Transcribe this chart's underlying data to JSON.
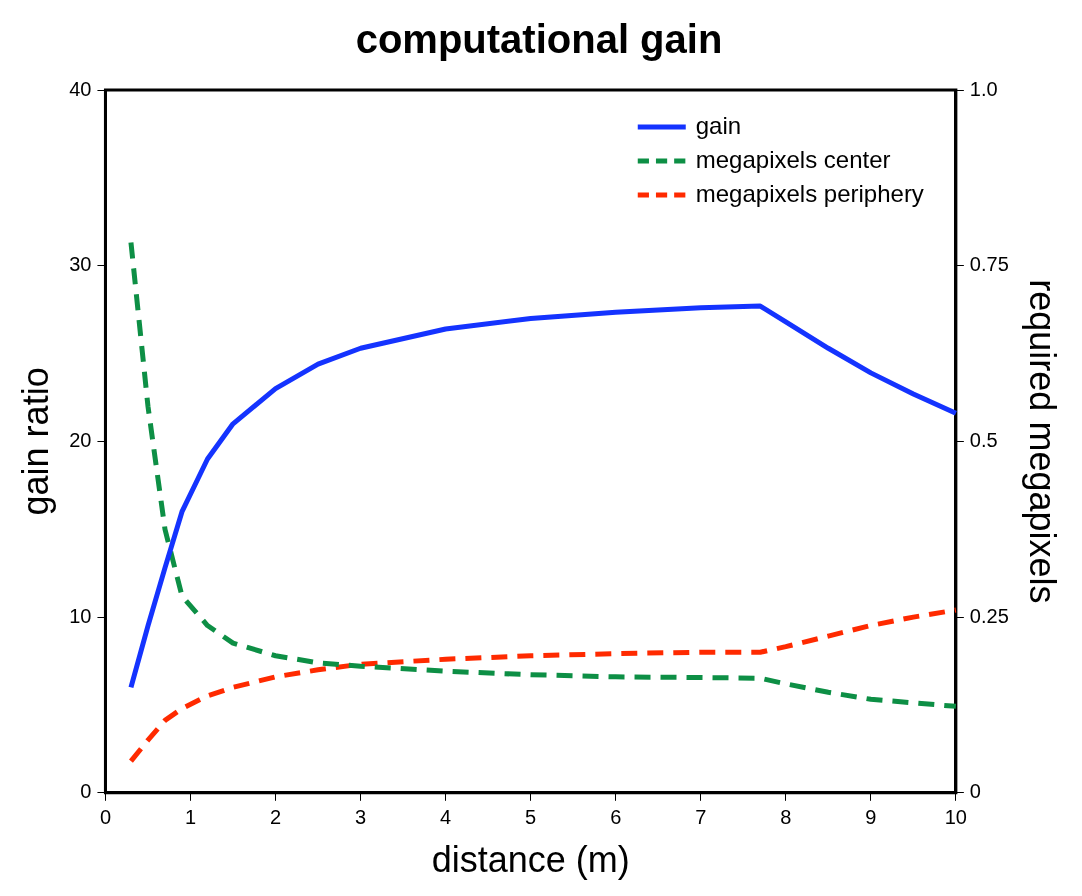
{
  "chart_data": {
    "type": "line",
    "title": "computational gain",
    "xlabel": "distance (m)",
    "ylabel": "gain ratio",
    "y2label": "required megapixels",
    "x": [
      0.3,
      0.5,
      0.7,
      0.9,
      1.2,
      1.5,
      2,
      2.5,
      3,
      4,
      5,
      6,
      7,
      7.7,
      8,
      8.5,
      9,
      9.5,
      10
    ],
    "series": [
      {
        "name": "gain",
        "color": "#1433ff",
        "line_style": "solid",
        "values": [
          6,
          9.5,
          12.8,
          16,
          19,
          21,
          23,
          24.4,
          25.3,
          26.4,
          27,
          27.35,
          27.6,
          27.7,
          26.8,
          25.3,
          23.9,
          22.7,
          21.6
        ]
      },
      {
        "name": "megapixels center",
        "color": "#0d8f45",
        "line_style": "dashed",
        "axis": "y2",
        "values": [
          0.783,
          0.55,
          0.375,
          0.28,
          0.238,
          0.213,
          0.195,
          0.185,
          0.18,
          0.173,
          0.168,
          0.165,
          0.164,
          0.163,
          0.155,
          0.143,
          0.133,
          0.128,
          0.123
        ]
      },
      {
        "name": "megapixels periphery",
        "color": "#ff2a00",
        "line_style": "dashed",
        "axis": "y2",
        "values": [
          0.045,
          0.075,
          0.103,
          0.12,
          0.138,
          0.15,
          0.165,
          0.175,
          0.183,
          0.19,
          0.195,
          0.198,
          0.2,
          0.2,
          0.208,
          0.223,
          0.238,
          0.25,
          0.26
        ]
      }
    ],
    "xlim": [
      0,
      10
    ],
    "xticks": [
      0,
      1,
      2,
      3,
      4,
      5,
      6,
      7,
      8,
      9,
      10
    ],
    "ylim": [
      0,
      40
    ],
    "yticks": [
      0,
      10,
      20,
      30,
      40
    ],
    "y2lim": [
      0,
      1
    ],
    "y2ticks": [
      0,
      0.25,
      0.5,
      0.75,
      {
        "value": 1,
        "label": "1.0"
      }
    ],
    "grid": false,
    "legend": "top right",
    "marker": "none"
  }
}
